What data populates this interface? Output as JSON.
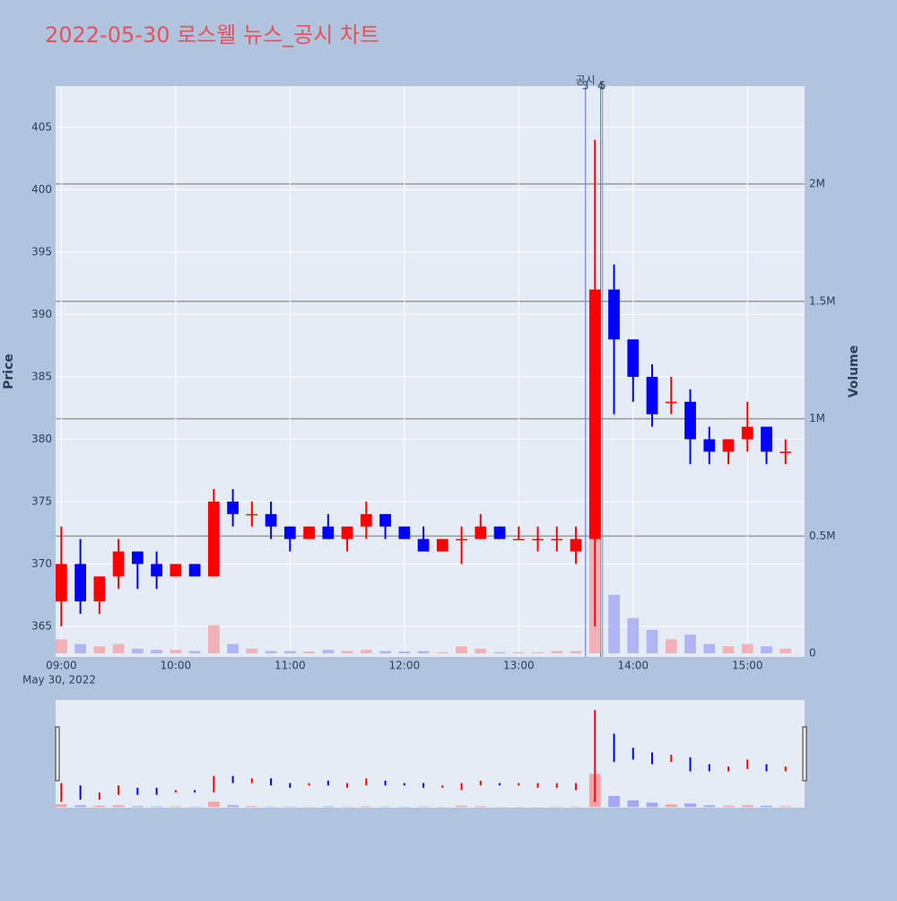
{
  "chart_data": {
    "type": "candlestick",
    "title": "2022-05-30 로스웰 뉴스_공시 차트",
    "y_axis_label": "Price",
    "y2_axis_label": "Volume",
    "x_date_label": "May 30, 2022",
    "increasing_color": "#ff0000",
    "decreasing_color": "#0000ff",
    "volume_increasing_color": "#f4a3a8",
    "volume_decreasing_color": "#a3a8f4",
    "x": [
      "09:00",
      "09:10",
      "09:20",
      "09:30",
      "09:40",
      "09:50",
      "10:00",
      "10:10",
      "10:20",
      "10:30",
      "10:40",
      "10:50",
      "11:00",
      "11:10",
      "11:20",
      "11:30",
      "11:40",
      "11:50",
      "12:00",
      "12:10",
      "12:20",
      "12:30",
      "12:40",
      "12:50",
      "13:00",
      "13:10",
      "13:20",
      "13:30",
      "13:40",
      "13:50",
      "14:00",
      "14:10",
      "14:20",
      "14:30",
      "14:40",
      "14:50",
      "15:00",
      "15:10",
      "15:20"
    ],
    "open": [
      367,
      370,
      367,
      369,
      371,
      370,
      369,
      370,
      369,
      375,
      374,
      374,
      373,
      372,
      373,
      372,
      373,
      374,
      373,
      372,
      371,
      372,
      372,
      373,
      372,
      372,
      372,
      371,
      372,
      392,
      388,
      385,
      383,
      383,
      380,
      379,
      380,
      381,
      379
    ],
    "high": [
      373,
      372,
      369,
      372,
      371,
      371,
      370,
      370,
      376,
      376,
      375,
      375,
      373,
      373,
      374,
      373,
      375,
      374,
      373,
      373,
      372,
      373,
      374,
      373,
      373,
      373,
      373,
      373,
      404,
      394,
      388,
      386,
      385,
      384,
      381,
      380,
      383,
      381,
      380
    ],
    "low": [
      365,
      366,
      366,
      368,
      368,
      368,
      369,
      369,
      369,
      373,
      373,
      372,
      371,
      372,
      372,
      371,
      372,
      372,
      372,
      371,
      371,
      370,
      372,
      372,
      372,
      371,
      371,
      370,
      365,
      382,
      383,
      381,
      382,
      378,
      378,
      378,
      379,
      378,
      378
    ],
    "close": [
      370,
      367,
      369,
      371,
      370,
      369,
      370,
      369,
      375,
      374,
      374,
      373,
      372,
      373,
      372,
      373,
      374,
      373,
      372,
      371,
      372,
      372,
      373,
      372,
      372,
      372,
      372,
      372,
      392,
      388,
      385,
      382,
      383,
      380,
      379,
      380,
      381,
      379,
      379
    ],
    "volume": [
      60000,
      40000,
      30000,
      40000,
      20000,
      15000,
      15000,
      10000,
      120000,
      40000,
      20000,
      10000,
      10000,
      8000,
      15000,
      10000,
      15000,
      10000,
      8000,
      10000,
      5000,
      30000,
      20000,
      5000,
      5000,
      5000,
      10000,
      10000,
      750000,
      250000,
      150000,
      100000,
      60000,
      80000,
      40000,
      30000,
      40000,
      30000,
      20000
    ],
    "xlim": [
      "08:57",
      "15:30"
    ],
    "xticks": [
      "09:00",
      "10:00",
      "11:00",
      "12:00",
      "13:00",
      "14:00",
      "15:00"
    ],
    "ylim": [
      362.55,
      408.3
    ],
    "yticks": [
      365,
      370,
      375,
      380,
      385,
      390,
      395,
      400,
      405
    ],
    "y2lim": [
      -15000,
      2417000
    ],
    "y2ticks": [
      0,
      {
        "value": 500000,
        "label": "0.5M"
      },
      {
        "value": 1000000,
        "label": "1M"
      },
      {
        "value": 1500000,
        "label": "1.5M"
      },
      {
        "value": 2000000,
        "label": "2M"
      }
    ],
    "annotations": [
      {
        "x": "13:35",
        "text": "공시"
      },
      {
        "x": "13:35",
        "text": "3"
      },
      {
        "x": "13:43",
        "text": "4"
      },
      {
        "x": "13:44",
        "text": "5"
      }
    ]
  }
}
